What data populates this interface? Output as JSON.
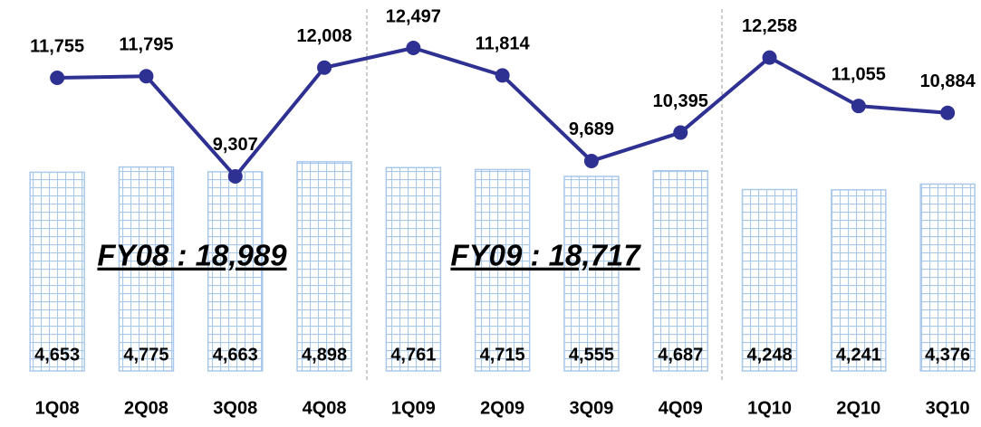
{
  "chart_data": {
    "type": "bar",
    "categories": [
      "1Q08",
      "2Q08",
      "3Q08",
      "4Q08",
      "1Q09",
      "2Q09",
      "3Q09",
      "4Q09",
      "1Q10",
      "2Q10",
      "3Q10"
    ],
    "ylim": [
      0,
      8475
    ],
    "y2lim": [
      4475,
      13463
    ],
    "series": [
      {
        "type": "bar",
        "color": "#a9c8ea",
        "values": [
          4653,
          4775,
          4663,
          4898,
          4761,
          4715,
          4555,
          4687,
          4248,
          4241,
          4376
        ],
        "value_labels": [
          "4,653",
          "4,775",
          "4,663",
          "4,898",
          "4,761",
          "4,715",
          "4,555",
          "4,687",
          "4,248",
          "4,241",
          "4,376"
        ]
      },
      {
        "type": "line",
        "axis": "y2",
        "color": "#2e3192",
        "values": [
          11755,
          11795,
          9307,
          12008,
          12497,
          11814,
          9689,
          10395,
          12258,
          11055,
          10884
        ],
        "value_labels": [
          "11,755",
          "11,795",
          "9,307",
          "12,008",
          "12,497",
          "11,814",
          "9,689",
          "10,395",
          "12,258",
          "11,055",
          "10,884"
        ]
      }
    ],
    "annotations": [
      "FY08 : 18,989",
      "FY09 : 18,717"
    ]
  }
}
